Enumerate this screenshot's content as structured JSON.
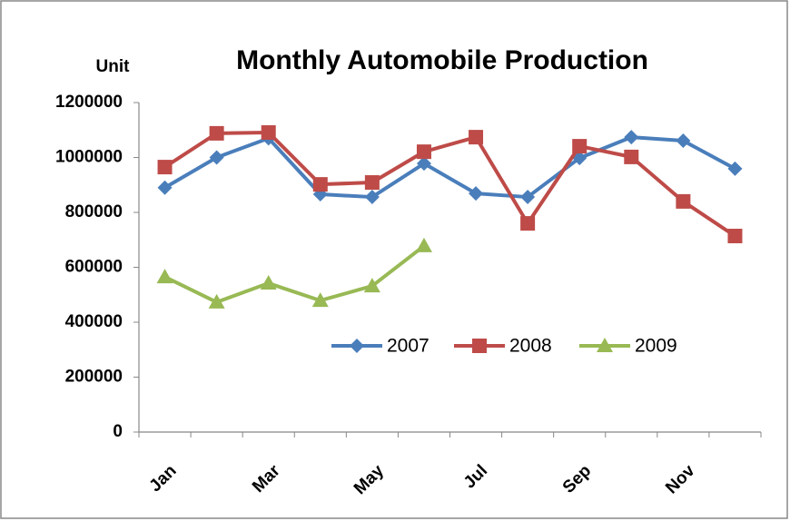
{
  "chart_data": {
    "type": "line",
    "title": "Monthly Automobile Production",
    "y_label": "Unit",
    "categories": [
      "Jan",
      null,
      "Mar",
      null,
      "May",
      null,
      "Jul",
      null,
      "Sep",
      null,
      "Nov",
      null
    ],
    "series": [
      {
        "name": "2007",
        "color": "#4a7ebb",
        "marker": "diamond",
        "values": [
          890000,
          1000000,
          1070000,
          866000,
          856000,
          978000,
          869000,
          856000,
          998000,
          1074000,
          1061000,
          959000
        ]
      },
      {
        "name": "2008",
        "color": "#be4b48",
        "marker": "square",
        "values": [
          965000,
          1088000,
          1091000,
          902000,
          909000,
          1021000,
          1074000,
          760000,
          1041000,
          1002000,
          840000,
          714000
        ]
      },
      {
        "name": "2009",
        "color": "#98b954",
        "marker": "triangle",
        "values": [
          565000,
          473000,
          542000,
          479000,
          532000,
          678000,
          null,
          null,
          null,
          null,
          null,
          null
        ]
      }
    ],
    "ylim": [
      0,
      1200000
    ],
    "yticks": [
      0,
      200000,
      400000,
      600000,
      800000,
      1000000,
      1200000
    ],
    "grid": false,
    "legend": "inside-center"
  }
}
